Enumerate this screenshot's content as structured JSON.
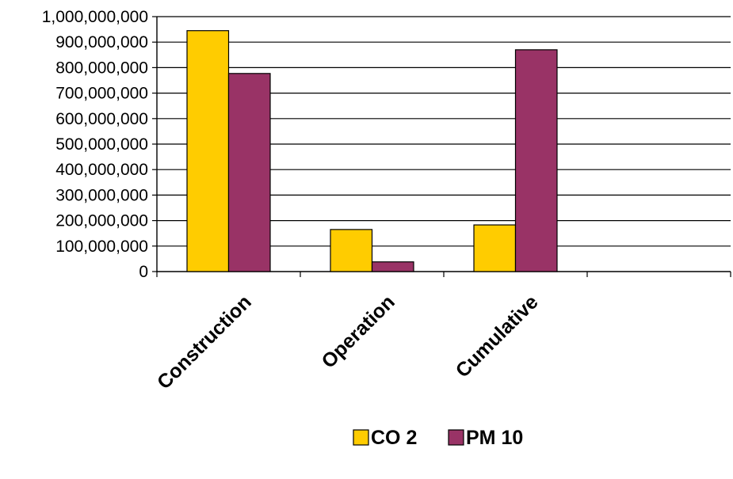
{
  "chart_data": {
    "type": "bar",
    "categories": [
      "Construction",
      "Operation",
      "Cumulative",
      ""
    ],
    "series": [
      {
        "name": "CO 2",
        "color": "#FFCC00",
        "values": [
          945000000,
          165000000,
          183000000,
          null
        ]
      },
      {
        "name": "PM 10",
        "color": "#993366",
        "values": [
          777000000,
          38000000,
          870000000,
          null
        ]
      }
    ],
    "ylim": [
      0,
      1000000000
    ],
    "y_ticks": [
      "0",
      "100,000,000",
      "200,000,000",
      "300,000,000",
      "400,000,000",
      "500,000,000",
      "600,000,000",
      "700,000,000",
      "800,000,000",
      "900,000,000",
      "1,000,000,000"
    ],
    "grid": true,
    "legend_position": "bottom",
    "xlabel": "",
    "ylabel": "",
    "title": ""
  }
}
